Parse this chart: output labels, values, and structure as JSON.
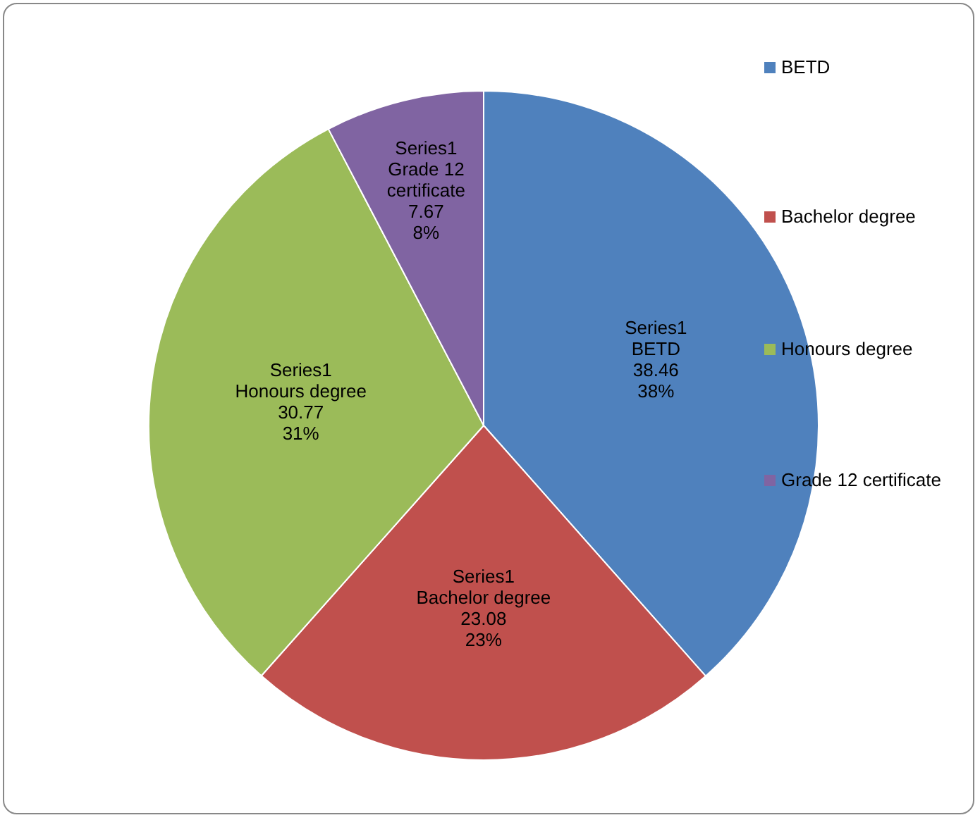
{
  "chart_data": {
    "type": "pie",
    "categories": [
      "BETD",
      "Bachelor degree",
      "Honours degree",
      "Grade 12 certificate"
    ],
    "series": [
      {
        "name": "Series1",
        "values": [
          38.46,
          23.08,
          30.77,
          7.67
        ],
        "colors": [
          "#4f81bd",
          "#c0504d",
          "#9bbb59",
          "#8064a2"
        ],
        "value_labels": [
          "38.46\n38%",
          "23.08\n23%",
          "30.77\n31%",
          "7.67\n8%"
        ]
      }
    ],
    "legend": "right"
  }
}
